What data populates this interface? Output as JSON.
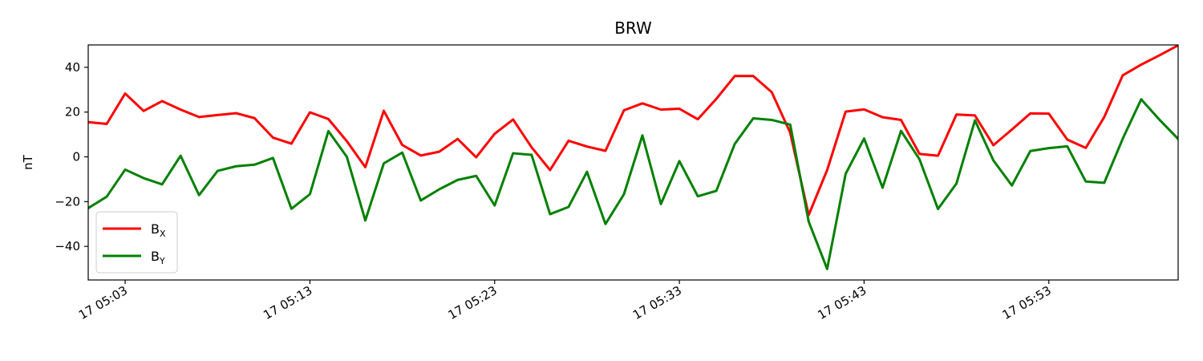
{
  "chart_data": {
    "type": "line",
    "title": "BRW",
    "ylabel": "nT",
    "xlabel": "",
    "x_unit": "minute",
    "x": [
      "05:01",
      "05:02",
      "05:03",
      "05:04",
      "05:05",
      "05:06",
      "05:07",
      "05:08",
      "05:09",
      "05:10",
      "05:11",
      "05:12",
      "05:13",
      "05:14",
      "05:15",
      "05:16",
      "05:17",
      "05:18",
      "05:19",
      "05:20",
      "05:21",
      "05:22",
      "05:23",
      "05:24",
      "05:25",
      "05:26",
      "05:27",
      "05:28",
      "05:29",
      "05:30",
      "05:31",
      "05:32",
      "05:33",
      "05:34",
      "05:35",
      "05:36",
      "05:37",
      "05:38",
      "05:39",
      "05:40",
      "05:41",
      "05:42",
      "05:43",
      "05:44",
      "05:45",
      "05:46",
      "05:47",
      "05:48",
      "05:49",
      "05:50",
      "05:51",
      "05:52",
      "05:53",
      "05:54",
      "05:55",
      "05:56",
      "05:57",
      "05:58",
      "05:59",
      "06:00"
    ],
    "xlim": [
      "05:01",
      "06:00"
    ],
    "ylim": [
      -55,
      50
    ],
    "x_ticks": [
      {
        "value": "05:03",
        "label": "17 05:03"
      },
      {
        "value": "05:13",
        "label": "17 05:13"
      },
      {
        "value": "05:23",
        "label": "17 05:23"
      },
      {
        "value": "05:33",
        "label": "17 05:33"
      },
      {
        "value": "05:43",
        "label": "17 05:43"
      },
      {
        "value": "05:53",
        "label": "17 05:53"
      }
    ],
    "y_ticks": [
      {
        "value": 40,
        "label": "40"
      },
      {
        "value": 20,
        "label": "20"
      },
      {
        "value": 0,
        "label": "0"
      },
      {
        "value": -20,
        "label": "−20"
      },
      {
        "value": -40,
        "label": "−40"
      }
    ],
    "grid": false,
    "legend_position": "lower-left",
    "series": [
      {
        "name": "B",
        "subscript": "X",
        "color": "#ff0000",
        "values": [
          15.5,
          14.7,
          28.3,
          20.5,
          24.9,
          21.1,
          17.8,
          18.7,
          19.5,
          17.3,
          8.6,
          5.9,
          19.9,
          16.9,
          7.0,
          -4.6,
          20.6,
          5.3,
          0.6,
          2.3,
          8.0,
          -0.2,
          10.3,
          16.7,
          4.3,
          -5.9,
          7.2,
          4.6,
          2.7,
          20.8,
          23.9,
          21.1,
          21.5,
          16.8,
          25.9,
          36.1,
          36.1,
          28.9,
          10.8,
          -26.0,
          -5.9,
          20.2,
          21.2,
          17.7,
          16.5,
          1.3,
          0.5,
          18.9,
          18.5,
          5.2,
          12.2,
          19.4,
          19.3,
          7.7,
          4.0,
          17.8,
          36.4,
          41.2,
          45.4,
          49.8
        ]
      },
      {
        "name": "B",
        "subscript": "Y",
        "color": "#008000",
        "values": [
          -22.9,
          -17.8,
          -5.7,
          -9.5,
          -12.3,
          0.5,
          -17.1,
          -6.3,
          -4.2,
          -3.5,
          -0.5,
          -23.2,
          -16.7,
          11.5,
          0.0,
          -28.4,
          -2.9,
          1.9,
          -19.5,
          -14.5,
          -10.3,
          -8.5,
          -21.7,
          1.6,
          0.9,
          -25.6,
          -22.4,
          -6.7,
          -30.0,
          -16.7,
          9.6,
          -21.1,
          -1.9,
          -17.6,
          -15.2,
          5.8,
          17.2,
          16.5,
          14.4,
          -28.9,
          -50.1,
          -7.6,
          8.2,
          -13.8,
          11.6,
          -1.1,
          -23.3,
          -11.9,
          16.3,
          -1.6,
          -12.8,
          2.6,
          3.9,
          4.7,
          -11.0,
          -11.6,
          8.1,
          25.7,
          16.5,
          8.0
        ]
      }
    ]
  }
}
